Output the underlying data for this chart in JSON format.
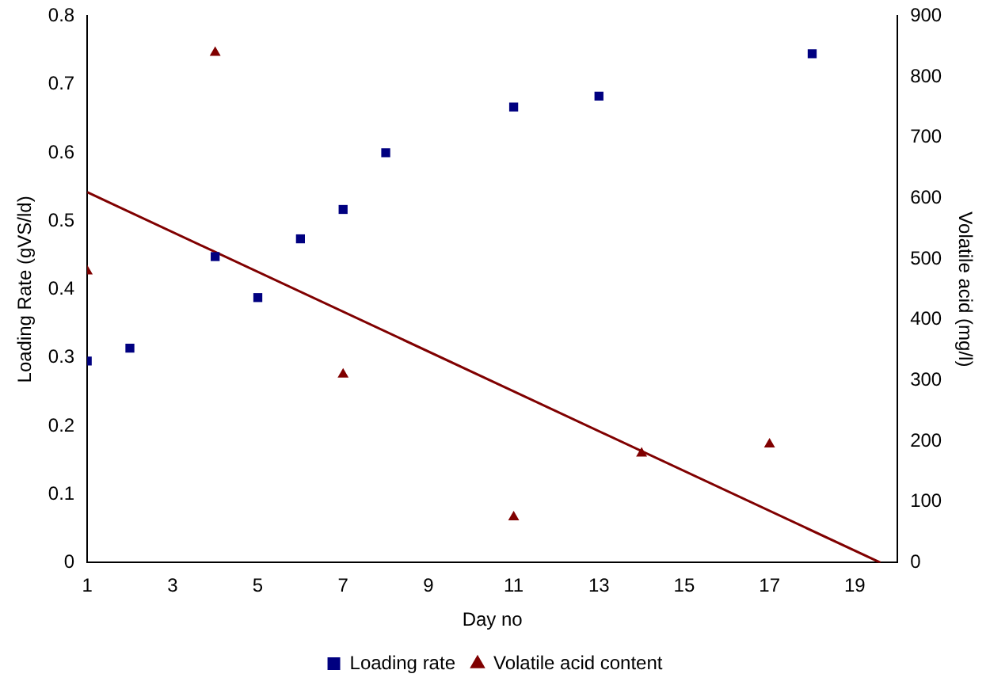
{
  "chart_data": {
    "type": "scatter",
    "xlabel": "Day no",
    "ylabel": "Loading Rate (gVS/ld)",
    "y2label": "Volatile acid (mg/l)",
    "xlim": [
      1,
      20
    ],
    "xticks": [
      1,
      3,
      5,
      7,
      9,
      11,
      13,
      15,
      17,
      19
    ],
    "ylim": [
      0,
      0.8
    ],
    "yticks": [
      0,
      0.1,
      0.2,
      0.3,
      0.4,
      0.5,
      0.6,
      0.7,
      0.8
    ],
    "y2lim": [
      0,
      900
    ],
    "y2ticks": [
      0,
      100,
      200,
      300,
      400,
      500,
      600,
      700,
      800,
      900
    ],
    "grid": false,
    "legend": "bottom",
    "series": [
      {
        "name": "Loading rate",
        "color": "#000080",
        "marker": "square",
        "x": [
          1,
          2,
          4,
          5,
          6,
          7,
          8,
          11,
          13,
          18
        ],
        "values": [
          0.295,
          0.314,
          0.448,
          0.388,
          0.474,
          0.517,
          0.6,
          0.667,
          0.683,
          0.745
        ]
      },
      {
        "name": "Volatile acid content",
        "color": "#800000",
        "marker": "triangle",
        "axis": "y2",
        "x": [
          1,
          4,
          7,
          11,
          14,
          17
        ],
        "values": [
          480,
          840,
          310,
          75,
          180,
          195
        ]
      },
      {
        "type": "line",
        "color": "#800000",
        "marker": "none",
        "line_style": "solid",
        "axis": "y2",
        "x": [
          1,
          19.6
        ],
        "values": [
          610,
          0
        ]
      }
    ]
  }
}
